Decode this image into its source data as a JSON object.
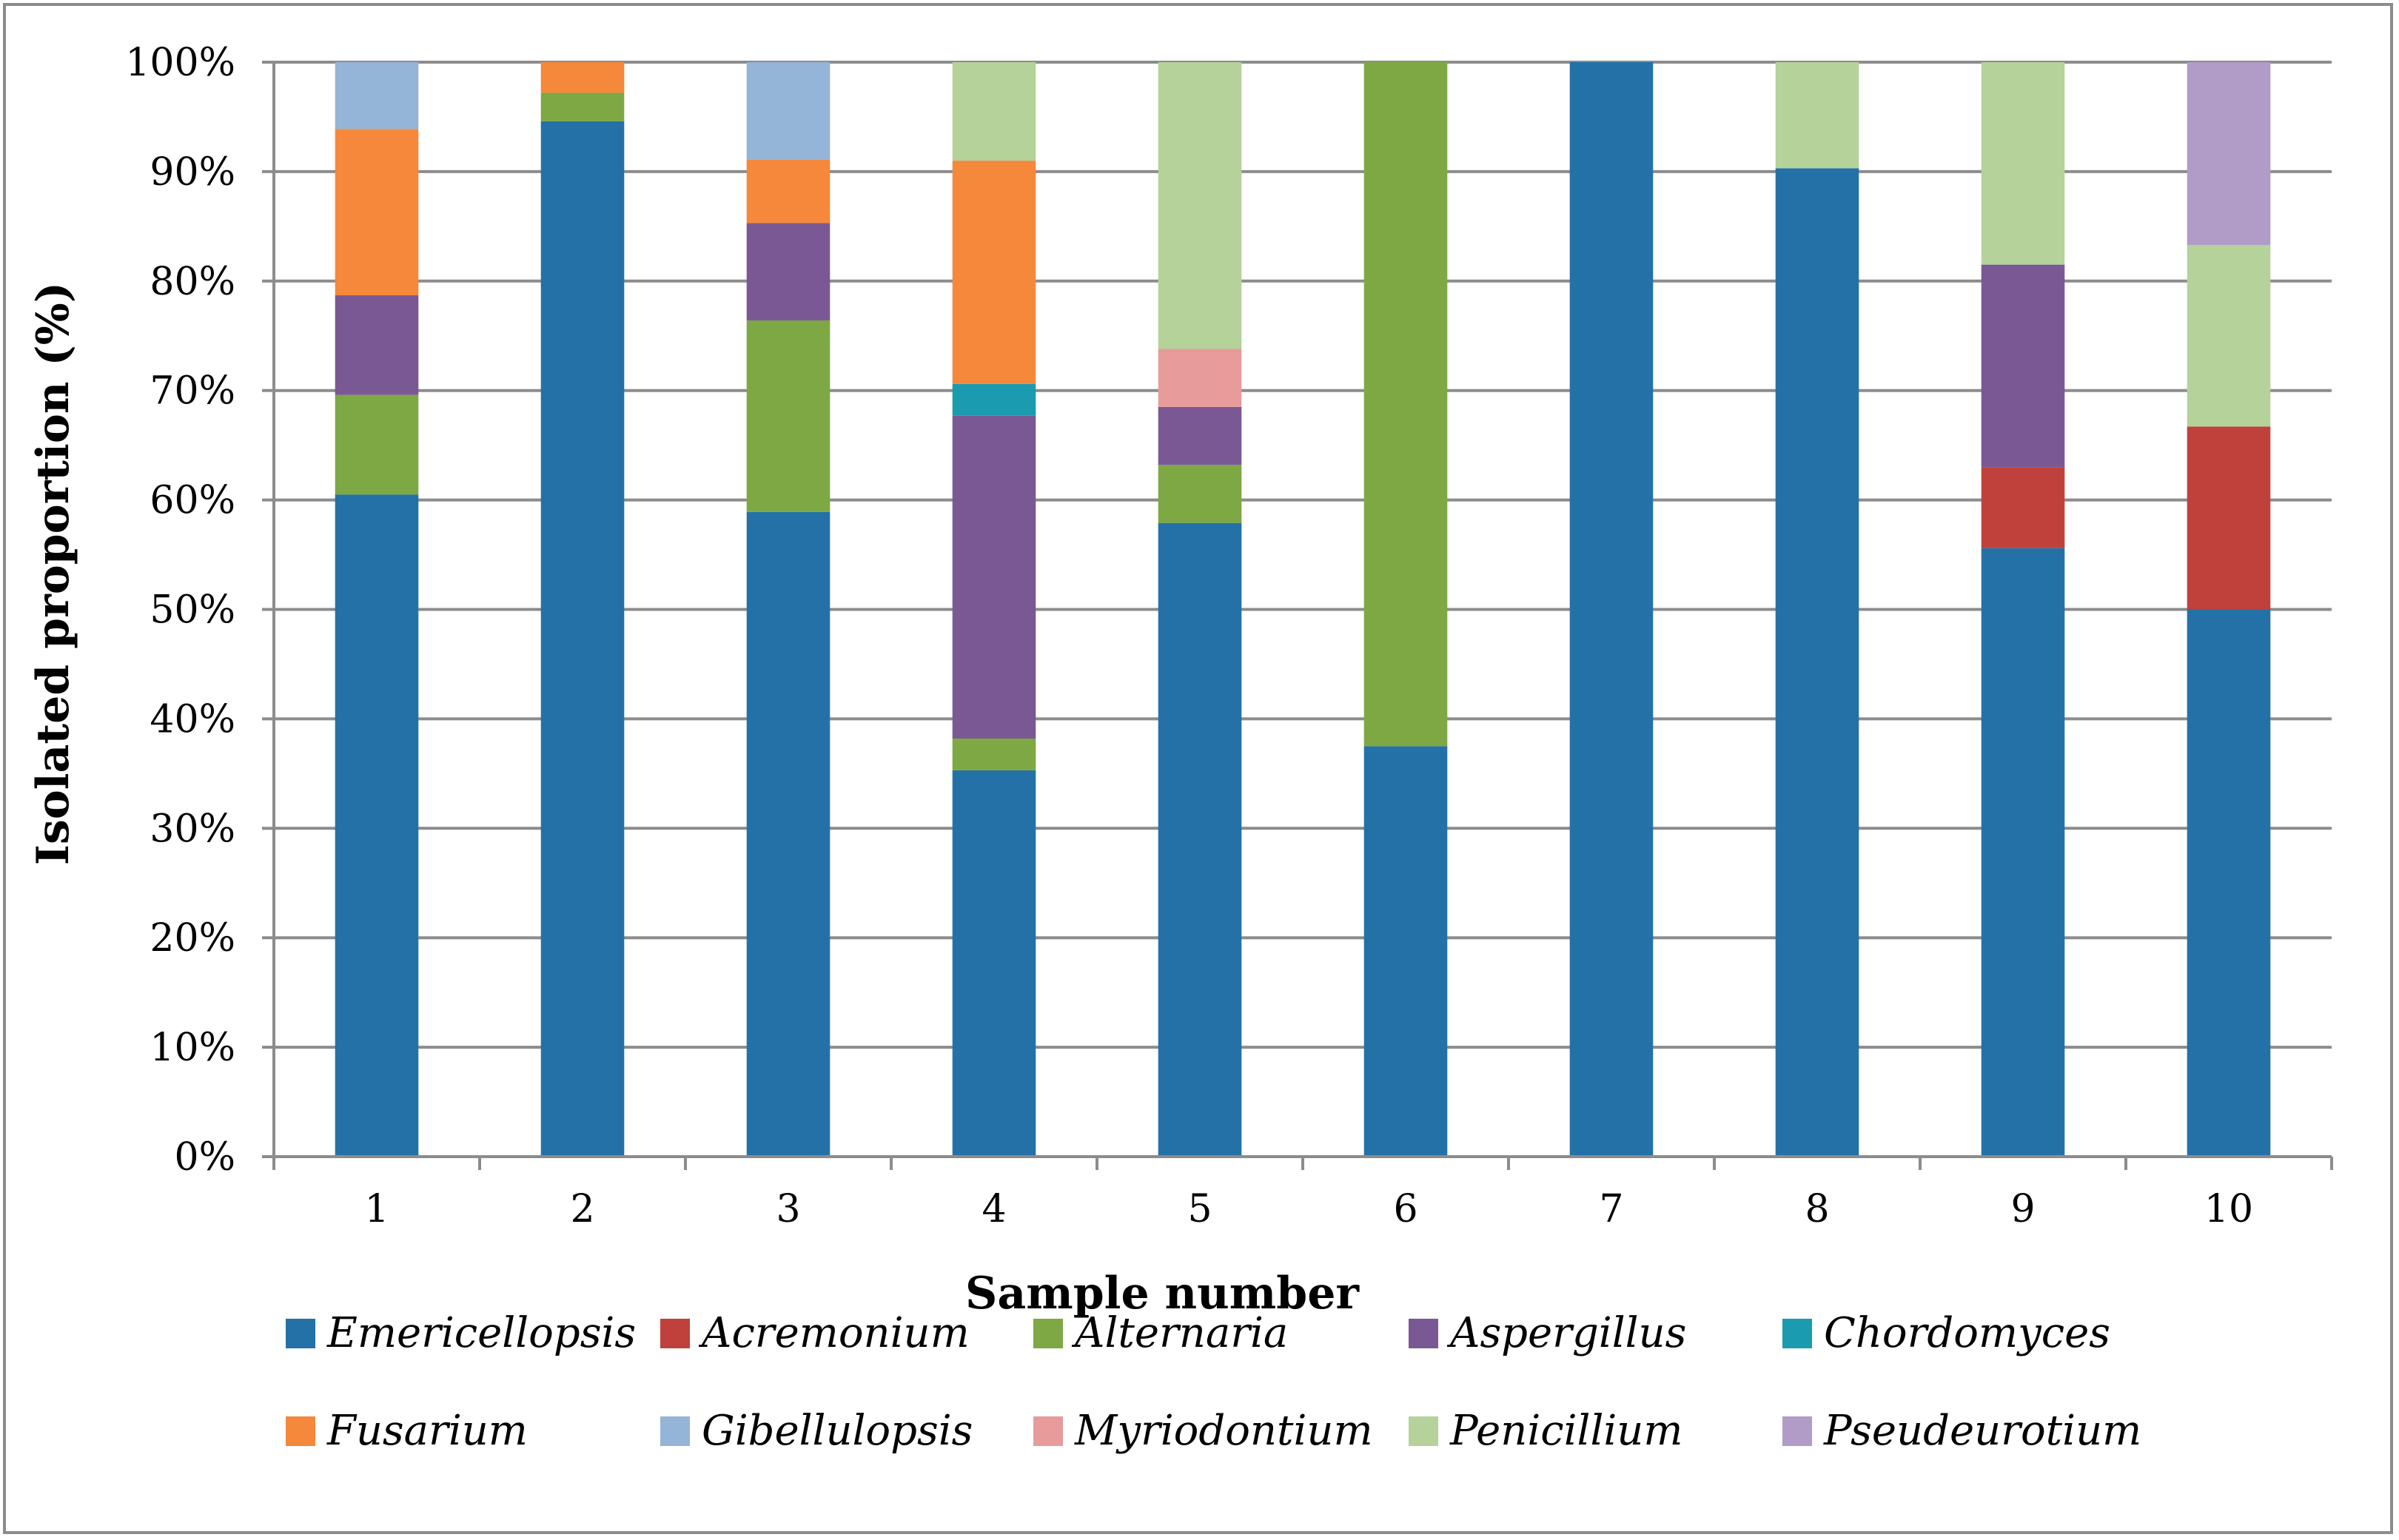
{
  "chart_data": {
    "type": "bar",
    "stacked": true,
    "percent": true,
    "title": "",
    "xlabel": "Sample number",
    "ylabel": "Isolated proportion (%)",
    "ylim": [
      0,
      100
    ],
    "yticks": [
      "0%",
      "10%",
      "20%",
      "30%",
      "40%",
      "50%",
      "60%",
      "70%",
      "80%",
      "90%",
      "100%"
    ],
    "grid": true,
    "legend_position": "bottom",
    "categories": [
      "1",
      "2",
      "3",
      "4",
      "5",
      "6",
      "7",
      "8",
      "9",
      "10"
    ],
    "series": [
      {
        "name": "Emericellopsis",
        "color": "#2471A8",
        "values": [
          60.5,
          94.6,
          58.9,
          35.3,
          57.9,
          37.5,
          100,
          90.3,
          55.6,
          50.0
        ]
      },
      {
        "name": "Acremonium",
        "color": "#C0413B",
        "values": [
          0,
          0,
          0,
          0,
          0,
          0,
          0,
          0,
          7.4,
          16.7
        ]
      },
      {
        "name": "Alternaria",
        "color": "#7EA843",
        "values": [
          9.1,
          2.6,
          17.5,
          2.9,
          5.3,
          62.5,
          0,
          0,
          0,
          0
        ]
      },
      {
        "name": "Aspergillus",
        "color": "#7A5894",
        "values": [
          9.1,
          0,
          8.9,
          29.5,
          5.3,
          0,
          0,
          0,
          18.5,
          0
        ]
      },
      {
        "name": "Chordomyces",
        "color": "#1A9BAF",
        "values": [
          0,
          0,
          0,
          2.9,
          0,
          0,
          0,
          0,
          0,
          0
        ]
      },
      {
        "name": "Fusarium",
        "color": "#F5883A",
        "values": [
          15.2,
          2.8,
          5.8,
          20.4,
          0,
          0,
          0,
          0,
          0,
          0
        ]
      },
      {
        "name": "Gibellulopsis",
        "color": "#94B4D8",
        "values": [
          6.1,
          0,
          8.9,
          0,
          0,
          0,
          0,
          0,
          0,
          0
        ]
      },
      {
        "name": "Myriodontium",
        "color": "#E79B9B",
        "values": [
          0,
          0,
          0,
          0,
          5.3,
          0,
          0,
          0,
          0,
          0
        ]
      },
      {
        "name": "Penicillium",
        "color": "#B5D29A",
        "values": [
          0,
          0,
          0,
          9.0,
          26.2,
          0,
          0,
          9.7,
          18.5,
          16.6
        ]
      },
      {
        "name": "Pseudeurotium",
        "color": "#B09CC6",
        "values": [
          0,
          0,
          0,
          0,
          0,
          0,
          0,
          0,
          0,
          16.7
        ]
      }
    ]
  },
  "styles": {
    "grid_color": "#8c8c8c",
    "axis_color": "#8c8c8c",
    "border_color": "#8c8c8c",
    "text_color": "#000000"
  }
}
